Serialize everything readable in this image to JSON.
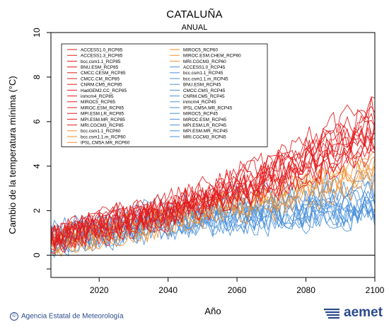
{
  "header": {
    "title": "CATALUÑA",
    "subtitle": "ANUAL"
  },
  "footer": {
    "credit": "Agencia Estatal de Meteorología",
    "credit_symbol": "©",
    "logo_text": "aemet"
  },
  "colors": {
    "rcp85": "#e31a1c",
    "rcp60": "#f28e2b",
    "rcp45": "#4a90d9",
    "frame": "#000000",
    "zero_line": "#000000",
    "logo": "#2b4a8c"
  },
  "chart_data": {
    "type": "line",
    "xlabel": "Año",
    "ylabel": "Cambio de la temperatura mínima (°C)",
    "xlim": [
      2006,
      2100
    ],
    "ylim": [
      -1,
      10
    ],
    "xticks": [
      2020,
      2040,
      2060,
      2080,
      2100
    ],
    "yticks": [
      0,
      2,
      4,
      6,
      8,
      10
    ],
    "grid": false,
    "reference_line": 0,
    "legend_position": "top-left",
    "legend_columns": 2,
    "scenarios": {
      "RCP85": {
        "color": "#e31a1c",
        "start": 2006,
        "end": 2100,
        "trend": [
          [
            2006,
            0.8
          ],
          [
            2040,
            2.0
          ],
          [
            2070,
            3.6
          ],
          [
            2100,
            5.6
          ]
        ]
      },
      "RCP60": {
        "color": "#f28e2b",
        "start": 2006,
        "end": 2100,
        "trend": [
          [
            2006,
            0.7
          ],
          [
            2040,
            1.6
          ],
          [
            2070,
            2.6
          ],
          [
            2100,
            3.9
          ]
        ]
      },
      "RCP45": {
        "color": "#4a90d9",
        "start": 2006,
        "end": 2100,
        "trend": [
          [
            2006,
            0.8
          ],
          [
            2040,
            1.6
          ],
          [
            2070,
            2.2
          ],
          [
            2100,
            2.6
          ]
        ]
      }
    },
    "series": [
      {
        "name": "ACCESS1.0_RCP85",
        "scenario": "RCP85"
      },
      {
        "name": "ACCESS1.3_RCP85",
        "scenario": "RCP85"
      },
      {
        "name": "bcc.csm1.1_RCP85",
        "scenario": "RCP85"
      },
      {
        "name": "BNU.ESM_RCP85",
        "scenario": "RCP85"
      },
      {
        "name": "CMCC.CESM_RCP85",
        "scenario": "RCP85"
      },
      {
        "name": "CMCC.CM_RCP85",
        "scenario": "RCP85"
      },
      {
        "name": "CNRM.CM5_RCP85",
        "scenario": "RCP85"
      },
      {
        "name": "HadGEM2.CC_RCP85",
        "scenario": "RCP85"
      },
      {
        "name": "inmcm4_RCP85",
        "scenario": "RCP85"
      },
      {
        "name": "MIROC5_RCP85",
        "scenario": "RCP85"
      },
      {
        "name": "MIROC.ESM_RCP85",
        "scenario": "RCP85"
      },
      {
        "name": "MPI.ESM.LR_RCP85",
        "scenario": "RCP85"
      },
      {
        "name": "MPI.ESM.MR_RCP85",
        "scenario": "RCP85"
      },
      {
        "name": "MRI.CGCM3_RCP85",
        "scenario": "RCP85"
      },
      {
        "name": "bcc.csm1.1_RCP60",
        "scenario": "RCP60"
      },
      {
        "name": "bcc.csm1.1.m_RCP60",
        "scenario": "RCP60"
      },
      {
        "name": "IPSL.CM5A.MR_RCP60",
        "scenario": "RCP60"
      },
      {
        "name": "MIROC5_RCP60",
        "scenario": "RCP60"
      },
      {
        "name": "MIROC.ESM.CHEM_RCP60",
        "scenario": "RCP60"
      },
      {
        "name": "MRI.CGCM3_RCP60",
        "scenario": "RCP60"
      },
      {
        "name": "ACCESS1.0_RCP45",
        "scenario": "RCP45"
      },
      {
        "name": "bcc.csm1.1_RCP45",
        "scenario": "RCP45"
      },
      {
        "name": "bcc.csm1.1.m_RCP45",
        "scenario": "RCP45"
      },
      {
        "name": "BNU.ESM_RCP45",
        "scenario": "RCP45"
      },
      {
        "name": "CMCC.CMS_RCP45",
        "scenario": "RCP45"
      },
      {
        "name": "CNRM.CM5_RCP45",
        "scenario": "RCP45"
      },
      {
        "name": "inmcm4_RCP45",
        "scenario": "RCP45"
      },
      {
        "name": "IPSL.CM5A.MR_RCP45",
        "scenario": "RCP45"
      },
      {
        "name": "MIROC5_RCP45",
        "scenario": "RCP45"
      },
      {
        "name": "MIROC.ESM_RCP45",
        "scenario": "RCP45"
      },
      {
        "name": "MPI.ESM.LR_RCP45",
        "scenario": "RCP45"
      },
      {
        "name": "MPI.ESM.MR_RCP45",
        "scenario": "RCP45"
      },
      {
        "name": "MRI.CGCM3_RCP45",
        "scenario": "RCP45"
      }
    ]
  }
}
